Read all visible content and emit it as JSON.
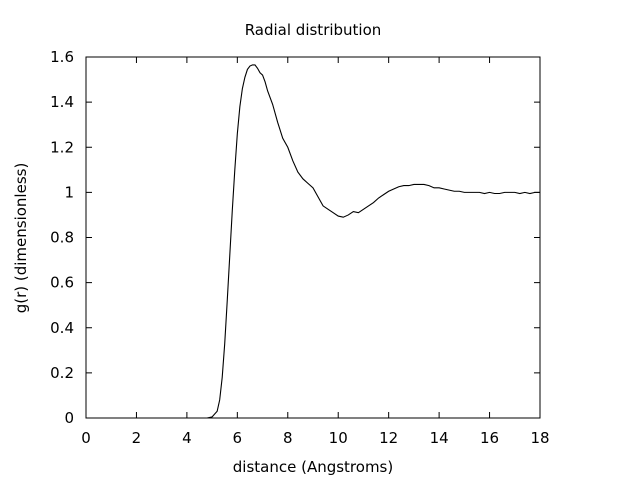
{
  "chart_data": {
    "type": "line",
    "title": "Radial distribution",
    "xlabel": "distance (Angstroms)",
    "ylabel": "g(r) (dimensionless)",
    "xlim": [
      0,
      18
    ],
    "ylim": [
      0,
      1.6
    ],
    "xticks": [
      "0",
      "2",
      "4",
      "6",
      "8",
      "10",
      "12",
      "14",
      "16",
      "18"
    ],
    "yticks": [
      "0",
      "0.2",
      "0.4",
      "0.6",
      "0.8",
      "1",
      "1.2",
      "1.4",
      "1.6"
    ],
    "grid": false,
    "legend": "none",
    "line_color": "#000000",
    "series": [
      {
        "x": [
          0,
          4.8,
          5.0,
          5.2,
          5.3,
          5.4,
          5.5,
          5.6,
          5.7,
          5.8,
          5.9,
          6.0,
          6.1,
          6.2,
          6.3,
          6.4,
          6.5,
          6.6,
          6.7,
          6.8,
          6.9,
          7.0,
          7.1,
          7.2,
          7.4,
          7.6,
          7.8,
          8.0,
          8.2,
          8.4,
          8.6,
          8.8,
          9.0,
          9.2,
          9.4,
          9.6,
          9.8,
          10.0,
          10.2,
          10.4,
          10.6,
          10.8,
          11.0,
          11.2,
          11.4,
          11.6,
          11.8,
          12.0,
          12.2,
          12.4,
          12.6,
          12.8,
          13.0,
          13.2,
          13.4,
          13.6,
          13.8,
          14.0,
          14.2,
          14.4,
          14.6,
          14.8,
          15.0,
          15.2,
          15.4,
          15.6,
          15.8,
          16.0,
          16.2,
          16.4,
          16.6,
          16.8,
          17.0,
          17.2,
          17.4,
          17.6,
          17.8,
          18.0
        ],
        "y": [
          0,
          0,
          0.005,
          0.03,
          0.08,
          0.18,
          0.33,
          0.52,
          0.72,
          0.92,
          1.1,
          1.26,
          1.38,
          1.46,
          1.51,
          1.545,
          1.56,
          1.565,
          1.565,
          1.55,
          1.53,
          1.52,
          1.49,
          1.45,
          1.39,
          1.31,
          1.24,
          1.2,
          1.14,
          1.09,
          1.06,
          1.04,
          1.02,
          0.98,
          0.94,
          0.925,
          0.91,
          0.895,
          0.89,
          0.9,
          0.915,
          0.91,
          0.925,
          0.94,
          0.955,
          0.975,
          0.99,
          1.005,
          1.015,
          1.025,
          1.03,
          1.03,
          1.035,
          1.035,
          1.035,
          1.03,
          1.02,
          1.02,
          1.015,
          1.01,
          1.005,
          1.005,
          1.0,
          1.0,
          1.0,
          1.0,
          0.995,
          1.0,
          0.995,
          0.995,
          1.0,
          1.0,
          1.0,
          0.995,
          1.0,
          0.995,
          1.0,
          1.0
        ]
      }
    ]
  }
}
